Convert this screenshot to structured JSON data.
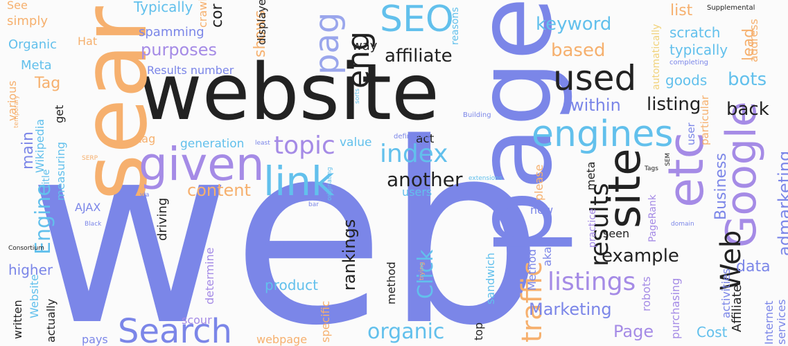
{
  "palette": {
    "indigo": "#7b86e8",
    "violet": "#a58be6",
    "sky": "#62c0ec",
    "peach": "#f6b06e",
    "ink": "#222222",
    "soft_indigo": "#9aa6ec",
    "soft_peach": "#f8c58f",
    "yellow": "#f1d27a"
  },
  "words": [
    {
      "text": "web",
      "color": "indigo"
    },
    {
      "text": "website",
      "color": "ink"
    },
    {
      "text": "page",
      "color": "indigo"
    },
    {
      "text": "sear",
      "color": "peach"
    },
    {
      "text": "given",
      "color": "violet"
    },
    {
      "text": "link",
      "color": "sky"
    },
    {
      "text": "engines",
      "color": "sky"
    },
    {
      "text": "site",
      "color": "ink"
    },
    {
      "text": "etc",
      "color": "violet"
    },
    {
      "text": "Google",
      "color": "violet"
    },
    {
      "text": "SEO",
      "color": "sky"
    },
    {
      "text": "used",
      "color": "ink"
    },
    {
      "text": "eng",
      "color": "ink"
    },
    {
      "text": "pag",
      "color": "soft_indigo"
    },
    {
      "text": "Search",
      "color": "indigo"
    },
    {
      "text": "Web",
      "color": "ink"
    },
    {
      "text": "results",
      "color": "ink"
    },
    {
      "text": "traffic",
      "color": "peach"
    },
    {
      "text": "topic",
      "color": "violet"
    },
    {
      "text": "index",
      "color": "sky"
    },
    {
      "text": "listings",
      "color": "violet"
    },
    {
      "text": "organic",
      "color": "sky"
    },
    {
      "text": "Engine",
      "color": "sky"
    },
    {
      "text": "Click",
      "color": "sky"
    },
    {
      "text": "another",
      "color": "ink"
    },
    {
      "text": "affiliate",
      "color": "ink"
    },
    {
      "text": "keyword",
      "color": "sky"
    },
    {
      "text": "based",
      "color": "peach"
    },
    {
      "text": "within",
      "color": "indigo"
    },
    {
      "text": "back",
      "color": "ink"
    },
    {
      "text": "listing",
      "color": "ink"
    },
    {
      "text": "bots",
      "color": "sky"
    },
    {
      "text": "Business",
      "color": "indigo"
    },
    {
      "text": "admarketing",
      "color": "indigo"
    },
    {
      "text": "example",
      "color": "ink"
    },
    {
      "text": "Marketing",
      "color": "indigo"
    },
    {
      "text": "Page",
      "color": "violet"
    },
    {
      "text": "purposes",
      "color": "violet"
    },
    {
      "text": "content",
      "color": "peach"
    },
    {
      "text": "Tag",
      "color": "peach"
    },
    {
      "text": "main",
      "color": "indigo"
    },
    {
      "text": "higher",
      "color": "indigo"
    },
    {
      "text": "rankings",
      "color": "ink"
    },
    {
      "text": "product",
      "color": "sky"
    },
    {
      "text": "data",
      "color": "indigo"
    },
    {
      "text": "Cost",
      "color": "sky"
    },
    {
      "text": "list",
      "color": "peach"
    },
    {
      "text": "lead",
      "color": "peach"
    },
    {
      "text": "scratch",
      "color": "sky"
    },
    {
      "text": "typically",
      "color": "sky"
    },
    {
      "text": "goods",
      "color": "sky"
    },
    {
      "text": "Typically",
      "color": "sky"
    },
    {
      "text": "spamming",
      "color": "indigo"
    },
    {
      "text": "Organic",
      "color": "sky"
    },
    {
      "text": "Meta",
      "color": "sky"
    },
    {
      "text": "simply",
      "color": "peach"
    },
    {
      "text": "Results number",
      "color": "indigo"
    },
    {
      "text": "way",
      "color": "ink"
    },
    {
      "text": "shows",
      "color": "peach"
    },
    {
      "text": "cor",
      "color": "ink"
    },
    {
      "text": "generation",
      "color": "sky"
    },
    {
      "text": "value",
      "color": "sky"
    },
    {
      "text": "act",
      "color": "ink"
    },
    {
      "text": "tag",
      "color": "peach"
    },
    {
      "text": "users",
      "color": "sky"
    },
    {
      "text": "AJAX",
      "color": "indigo"
    },
    {
      "text": "driving",
      "color": "ink"
    },
    {
      "text": "method",
      "color": "ink"
    },
    {
      "text": "determine",
      "color": "violet"
    },
    {
      "text": "scour",
      "color": "violet"
    },
    {
      "text": "pays",
      "color": "indigo"
    },
    {
      "text": "webpage",
      "color": "peach"
    },
    {
      "text": "Website",
      "color": "sky"
    },
    {
      "text": "written",
      "color": "ink"
    },
    {
      "text": "actually",
      "color": "ink"
    },
    {
      "text": "new",
      "color": "indigo"
    },
    {
      "text": "please",
      "color": "peach"
    },
    {
      "text": "meta",
      "color": "ink"
    },
    {
      "text": "practice",
      "color": "violet"
    },
    {
      "text": "seen",
      "color": "ink"
    },
    {
      "text": "PageRank",
      "color": "violet"
    },
    {
      "text": "Method",
      "color": "indigo"
    },
    {
      "text": "aka",
      "color": "indigo"
    },
    {
      "text": "robots",
      "color": "violet"
    },
    {
      "text": "purchasing",
      "color": "violet"
    },
    {
      "text": "activities",
      "color": "indigo"
    },
    {
      "text": "Affiliate",
      "color": "ink"
    },
    {
      "text": "Internet",
      "color": "indigo"
    },
    {
      "text": "services",
      "color": "indigo"
    },
    {
      "text": "sandwich",
      "color": "sky"
    },
    {
      "text": "top",
      "color": "ink"
    },
    {
      "text": "specific",
      "color": "peach"
    },
    {
      "text": "measuring",
      "color": "sky"
    },
    {
      "text": "get",
      "color": "ink"
    },
    {
      "text": "title",
      "color": "sky"
    },
    {
      "text": "Wikipedia",
      "color": "sky"
    },
    {
      "text": "various",
      "color": "peach"
    },
    {
      "text": "Hat",
      "color": "peach"
    },
    {
      "text": "See",
      "color": "peach"
    },
    {
      "text": "automatically",
      "color": "yellow"
    },
    {
      "text": "address",
      "color": "peach"
    },
    {
      "text": "particular",
      "color": "peach"
    },
    {
      "text": "user",
      "color": "indigo"
    },
    {
      "text": "reasons",
      "color": "sky"
    },
    {
      "text": "displayed",
      "color": "ink"
    },
    {
      "text": "crawl",
      "color": "peach"
    },
    {
      "text": "Supplemental",
      "color": "ink"
    },
    {
      "text": "completing",
      "color": "indigo"
    },
    {
      "text": "Building",
      "color": "indigo"
    },
    {
      "text": "sorts",
      "color": "sky"
    },
    {
      "text": "least",
      "color": "indigo"
    },
    {
      "text": "definitions",
      "color": "indigo"
    },
    {
      "text": "temporary",
      "color": "peach"
    },
    {
      "text": "SERP",
      "color": "peach"
    },
    {
      "text": "via",
      "color": "indigo"
    },
    {
      "text": "Black",
      "color": "indigo"
    },
    {
      "text": "Consortium",
      "color": "ink"
    },
    {
      "text": "Latent",
      "color": "indigo"
    },
    {
      "text": "originating",
      "color": "sky"
    },
    {
      "text": "bar",
      "color": "indigo"
    },
    {
      "text": "extensions",
      "color": "sky"
    },
    {
      "text": "rank",
      "color": "indigo"
    },
    {
      "text": "Tags",
      "color": "ink"
    },
    {
      "text": "SEM",
      "color": "ink"
    },
    {
      "text": "domain",
      "color": "indigo"
    },
    {
      "text": "trying",
      "color": "peach"
    }
  ]
}
